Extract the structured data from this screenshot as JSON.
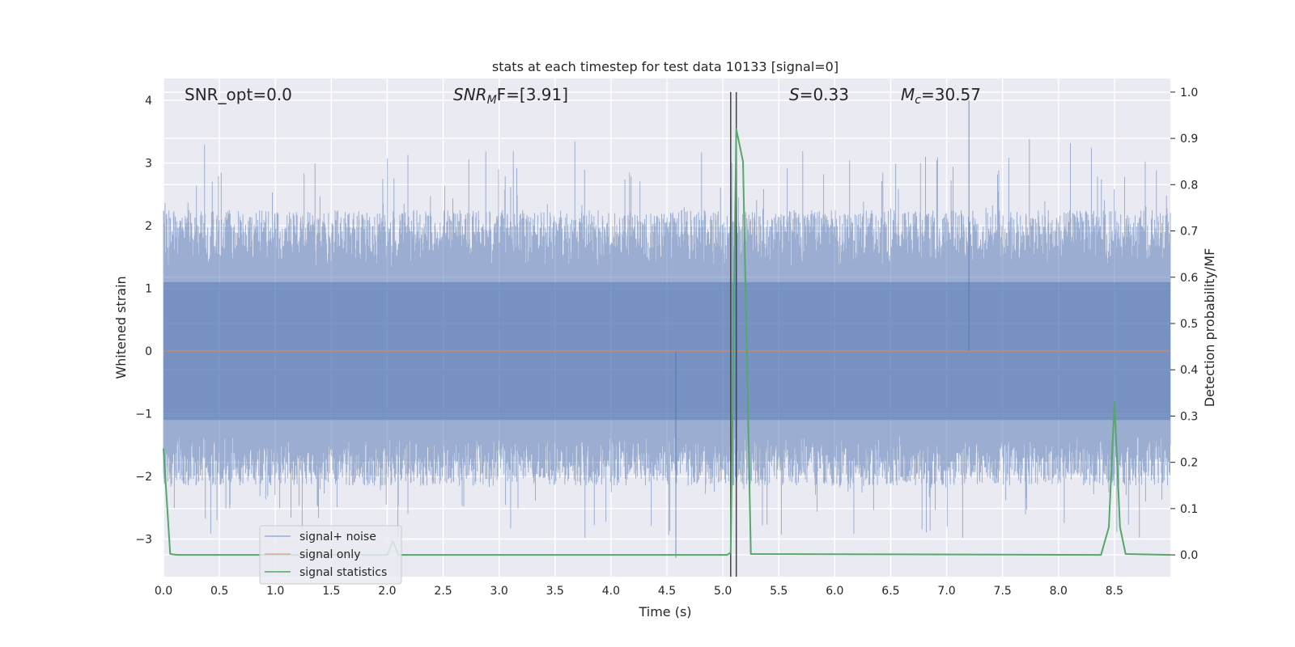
{
  "chart_data": {
    "type": "line",
    "title": "stats at each timestep for test data 10133 [signal=0]",
    "xlabel": "Time (s)",
    "ylabel_left": "Whitened strain",
    "ylabel_right": "Detection probability/MF",
    "xlim": [
      0,
      9.0
    ],
    "ylim_left": [
      -3.6,
      4.35
    ],
    "ylim_right": [
      -0.047,
      1.0295
    ],
    "xticks": [
      0.0,
      0.5,
      1.0,
      1.5,
      2.0,
      2.5,
      3.0,
      3.5,
      4.0,
      4.5,
      5.0,
      5.5,
      6.0,
      6.5,
      7.0,
      7.5,
      8.0,
      8.5
    ],
    "xtick_labels": [
      "0.0",
      "0.5",
      "1.0",
      "1.5",
      "2.0",
      "2.5",
      "3.0",
      "3.5",
      "4.0",
      "4.5",
      "5.0",
      "5.5",
      "6.0",
      "6.5",
      "7.0",
      "7.5",
      "8.0",
      "8.5"
    ],
    "yticks_left": [
      -3,
      -2,
      -1,
      0,
      1,
      2,
      3,
      4
    ],
    "ytick_labels_left": [
      "−3",
      "−2",
      "−1",
      "0",
      "1",
      "2",
      "3",
      "4"
    ],
    "yticks_right": [
      0.0,
      0.1,
      0.2,
      0.3,
      0.4,
      0.5,
      0.6,
      0.7,
      0.8,
      0.9,
      1.0
    ],
    "ytick_labels_right": [
      "0.0",
      "0.1",
      "0.2",
      "0.3",
      "0.4",
      "0.5",
      "0.6",
      "0.7",
      "0.8",
      "0.9",
      "1.0"
    ],
    "grid": true,
    "annotations": {
      "snr_opt": "SNR_opt=0.0",
      "snr_mf_prefix": "SNR",
      "snr_mf_sub": "M",
      "snr_mf_suffix": "F=[3.91]",
      "s_label": "S",
      "s_value": "=0.33",
      "mc_label": "M",
      "mc_sub": "c",
      "mc_value": "=30.57"
    },
    "vlines": [
      5.07,
      5.12
    ],
    "noise_envelope": {
      "time_range": [
        0,
        9.0
      ],
      "typical_range": [
        -1.1,
        1.1
      ],
      "max": 4.0,
      "min": -3.3
    },
    "series": [
      {
        "name": "signal+ noise",
        "color": "#4c72b0",
        "axis": "left",
        "kind": "noise"
      },
      {
        "name": "signal only",
        "color": "#dd8452",
        "axis": "left",
        "x": [
          0,
          9.0
        ],
        "y": [
          0,
          0
        ]
      },
      {
        "name": "signal statistics",
        "color": "#55a868",
        "axis": "right",
        "x": [
          0.0,
          0.06,
          0.12,
          1.9,
          2.0,
          2.05,
          2.1,
          2.2,
          5.04,
          5.07,
          5.12,
          5.18,
          5.25,
          8.38,
          8.45,
          8.5,
          8.55,
          8.6,
          9.0
        ],
        "y": [
          0.23,
          0.002,
          0.0,
          0.0,
          0.0,
          0.03,
          0.0,
          0.0,
          0.0,
          0.005,
          0.92,
          0.85,
          0.002,
          0.0,
          0.06,
          0.33,
          0.06,
          0.002,
          0.0
        ]
      }
    ],
    "legend": {
      "location": "lower-left",
      "entries": [
        "signal+ noise",
        "signal only",
        "signal statistics"
      ]
    }
  }
}
